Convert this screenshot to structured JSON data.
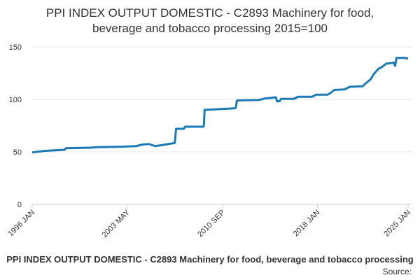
{
  "chart_data": {
    "type": "line",
    "title": [
      "PPI INDEX OUTPUT DOMESTIC - C2893 Machinery for food,",
      "beverage and tobacco processing 2015=100"
    ],
    "caption": "PPI INDEX OUTPUT DOMESTIC - C2893 Machinery for food, beverage and tobacco processing",
    "source": "Source:",
    "xlim": [
      1996,
      2025
    ],
    "xticks": [
      {
        "value": 1996,
        "label": "1996 JAN"
      },
      {
        "value": 2003.33,
        "label": "2003 MAY"
      },
      {
        "value": 2010.67,
        "label": "2010 SEP"
      },
      {
        "value": 2018,
        "label": "2018 JAN"
      },
      {
        "value": 2025,
        "label": "2025 JAN"
      }
    ],
    "ylim": [
      0,
      150
    ],
    "yticks": [
      0,
      50,
      100,
      150
    ],
    "grid": true,
    "series": [
      {
        "color": "#1a7ab8",
        "x": [
          1996,
          1997,
          1998.5,
          1998.6,
          2000.5,
          2001,
          2003,
          2004,
          2004.5,
          2005,
          2005.5,
          2006,
          2006.5,
          2007.0,
          2007.1,
          2007.7,
          2007.8,
          2009.2,
          2009.25,
          2009.3,
          2011.6,
          2011.7,
          2011.8,
          2013.5,
          2014.0,
          2014.8,
          2014.9,
          2015.1,
          2015.2,
          2016.2,
          2016.5,
          2017.6,
          2017.9,
          2018.8,
          2019.0,
          2019.3,
          2020.1,
          2020.5,
          2021.5,
          2021.7,
          2022.1,
          2022.35,
          2022.7,
          2023.0,
          2023.3,
          2023.9,
          2024.0,
          2024.1,
          2024.7,
          2025
        ],
        "values": [
          49.5,
          51,
          52,
          53.5,
          54,
          54.5,
          55,
          55.5,
          57,
          57.5,
          55.5,
          56.5,
          57.5,
          58.5,
          72,
          72,
          74,
          74,
          76,
          90,
          91.5,
          92,
          99,
          99.5,
          101,
          102,
          98,
          98.5,
          100.5,
          100.5,
          102.5,
          102.5,
          104.5,
          104.5,
          106,
          109,
          109.5,
          112,
          112.5,
          115,
          119,
          124,
          129,
          131,
          134,
          135,
          132,
          139.5,
          139.5,
          139
        ]
      }
    ]
  }
}
